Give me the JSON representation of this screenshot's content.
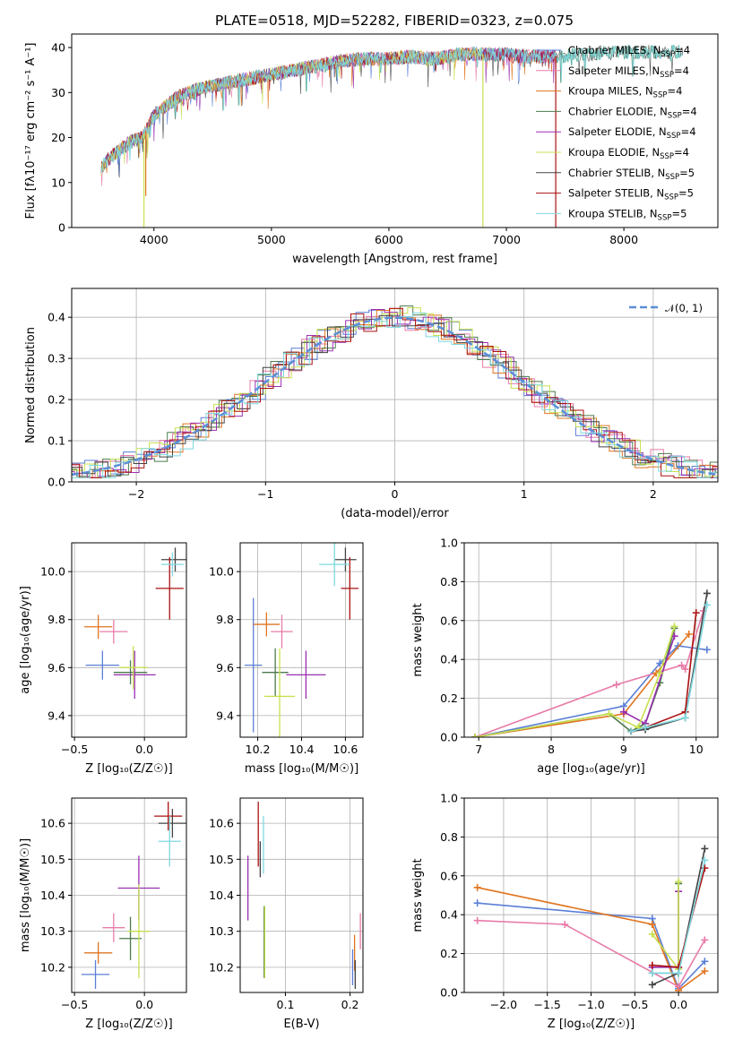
{
  "figure_title": "PLATE=0518, MJD=52282, FIBERID=0323, z=0.075",
  "colors": {
    "chabrier_miles": "#5b7fd6",
    "salpeter_miles": "#e87ba8",
    "kroupa_miles": "#e07520",
    "chabrier_elodie": "#4d7a4d",
    "salpeter_elodie": "#9a2fb0",
    "kroupa_elodie": "#c8e050",
    "chabrier_stelib": "#444444",
    "salpeter_stelib": "#aa1111",
    "kroupa_stelib": "#7fd8e0",
    "gaussian": "#5b8fd6"
  },
  "chart_data": [
    {
      "id": "spectrum",
      "type": "line",
      "title": "PLATE=0518, MJD=52282, FIBERID=0323, z=0.075",
      "xlabel": "wavelength [Angstrom, rest frame]",
      "ylabel": "Flux [fλ10⁻¹⁷ erg cm⁻² s⁻¹ A⁻¹]",
      "xlim": [
        3300,
        8800
      ],
      "ylim": [
        0,
        43
      ],
      "xticks": [
        4000,
        5000,
        6000,
        7000,
        8000
      ],
      "yticks": [
        0,
        10,
        20,
        30,
        40
      ],
      "grid": false,
      "legend_position": "right",
      "legend": [
        {
          "label": "Chabrier MILES, N",
          "sub": "SSP",
          "tail": "=4",
          "color": "#5b7fd6"
        },
        {
          "label": "Salpeter MILES, N",
          "sub": "SSP",
          "tail": "=4",
          "color": "#e87ba8"
        },
        {
          "label": "Kroupa MILES, N",
          "sub": "SSP",
          "tail": "=4",
          "color": "#e07520"
        },
        {
          "label": "Chabrier ELODIE, N",
          "sub": "SSP",
          "tail": "=4",
          "color": "#4d7a4d"
        },
        {
          "label": "Salpeter ELODIE, N",
          "sub": "SSP",
          "tail": "=4",
          "color": "#9a2fb0"
        },
        {
          "label": "Kroupa ELODIE, N",
          "sub": "SSP",
          "tail": "=4",
          "color": "#c8e050"
        },
        {
          "label": "Chabrier STELIB, N",
          "sub": "SSP",
          "tail": "=5",
          "color": "#444444"
        },
        {
          "label": "Salpeter STELIB, N",
          "sub": "SSP",
          "tail": "=5",
          "color": "#aa1111"
        },
        {
          "label": "Kroupa STELIB, N",
          "sub": "SSP",
          "tail": "=5",
          "color": "#7fd8e0"
        }
      ],
      "continuum": {
        "x": [
          3550,
          3600,
          3700,
          3800,
          3900,
          4000,
          4100,
          4200,
          4300,
          4400,
          4600,
          4800,
          5000,
          5200,
          5400,
          5600,
          5800,
          6000,
          6200,
          6400,
          6600,
          6800,
          7000,
          7200,
          7400,
          8000,
          8500
        ],
        "y": [
          13,
          15,
          17,
          19,
          20,
          25,
          27,
          29,
          30,
          31,
          32,
          33,
          34,
          35,
          36,
          37,
          37.5,
          37.5,
          38,
          37.5,
          38.5,
          38.5,
          38.5,
          38,
          38,
          39,
          39
        ]
      },
      "dips": [
        {
          "x": 3915,
          "y": 0,
          "color": "#c8e050"
        },
        {
          "x": 3930,
          "y": 7,
          "color": "#e07520"
        },
        {
          "x": 6800,
          "y": 0,
          "color": "#c8e050"
        },
        {
          "x": 7420,
          "y": 0,
          "color": "#aa1111"
        }
      ]
    },
    {
      "id": "residuals",
      "type": "histogram",
      "xlabel": "(data-model)/error",
      "ylabel": "Normed distribution",
      "xlim": [
        -2.5,
        2.5
      ],
      "ylim": [
        0,
        0.47
      ],
      "xticks": [
        -2,
        -1,
        0,
        1,
        2
      ],
      "yticks": [
        0.0,
        0.1,
        0.2,
        0.3,
        0.4
      ],
      "grid": true,
      "legend_position": "top-right",
      "legend_label": "𝒩(0, 1)",
      "bin_width": 0.1
    },
    {
      "id": "age_vs_Z",
      "type": "errorbar",
      "xlabel": "Z [log₁₀(Z/Z☉)]",
      "ylabel": "age  [log₁₀(age/yr)]",
      "xlim": [
        -0.52,
        0.3
      ],
      "ylim": [
        9.31,
        10.12
      ],
      "xticks": [
        -0.5,
        0.0
      ],
      "xtick_labels": [
        "−0.5",
        "0.0"
      ],
      "yticks": [
        9.4,
        9.6,
        9.8,
        10.0
      ],
      "grid": true,
      "points": [
        {
          "x": -0.3,
          "xerr": 0.12,
          "y": 9.61,
          "yerr": 0.06,
          "color": "#5b7fd6"
        },
        {
          "x": -0.33,
          "xerr": 0.1,
          "y": 9.77,
          "yerr": 0.05,
          "color": "#e07520"
        },
        {
          "x": -0.22,
          "xerr": 0.1,
          "y": 9.75,
          "yerr": 0.05,
          "color": "#e87ba8"
        },
        {
          "x": -0.1,
          "xerr": 0.12,
          "y": 9.58,
          "yerr": 0.05,
          "color": "#4d7a4d"
        },
        {
          "x": -0.07,
          "xerr": 0.15,
          "y": 9.57,
          "yerr": 0.1,
          "color": "#9a2fb0"
        },
        {
          "x": -0.08,
          "xerr": 0.1,
          "y": 9.6,
          "yerr": 0.09,
          "color": "#c8e050"
        },
        {
          "x": 0.22,
          "xerr": 0.1,
          "y": 10.05,
          "yerr": 0.05,
          "color": "#444444"
        },
        {
          "x": 0.18,
          "xerr": 0.1,
          "y": 9.93,
          "yerr": 0.13,
          "color": "#aa1111"
        },
        {
          "x": 0.2,
          "xerr": 0.08,
          "y": 10.03,
          "yerr": 0.05,
          "color": "#7fd8e0"
        }
      ]
    },
    {
      "id": "age_vs_mass",
      "type": "errorbar",
      "xlabel": "mass [log₁₀(M/M☉)]",
      "ylabel": "",
      "xlim": [
        10.12,
        10.68
      ],
      "ylim": [
        9.31,
        10.12
      ],
      "xticks": [
        10.2,
        10.4,
        10.6
      ],
      "yticks": [
        9.4,
        9.6,
        9.8,
        10.0
      ],
      "grid": true,
      "points": [
        {
          "x": 10.18,
          "xerr": 0.04,
          "y": 9.61,
          "yerr": 0.28,
          "color": "#5b7fd6"
        },
        {
          "x": 10.24,
          "xerr": 0.06,
          "y": 9.78,
          "yerr": 0.05,
          "color": "#e07520"
        },
        {
          "x": 10.31,
          "xerr": 0.05,
          "y": 9.75,
          "yerr": 0.07,
          "color": "#e87ba8"
        },
        {
          "x": 10.28,
          "xerr": 0.06,
          "y": 9.58,
          "yerr": 0.1,
          "color": "#4d7a4d"
        },
        {
          "x": 10.42,
          "xerr": 0.09,
          "y": 9.57,
          "yerr": 0.1,
          "color": "#9a2fb0"
        },
        {
          "x": 10.3,
          "xerr": 0.07,
          "y": 9.48,
          "yerr": 0.2,
          "color": "#c8e050"
        },
        {
          "x": 10.6,
          "xerr": 0.05,
          "y": 10.05,
          "yerr": 0.05,
          "color": "#444444"
        },
        {
          "x": 10.62,
          "xerr": 0.04,
          "y": 9.93,
          "yerr": 0.13,
          "color": "#aa1111"
        },
        {
          "x": 10.55,
          "xerr": 0.07,
          "y": 10.03,
          "yerr": 0.09,
          "color": "#7fd8e0"
        }
      ]
    },
    {
      "id": "massweight_vs_age",
      "type": "line",
      "xlabel": "age  [log₁₀(age/yr)]",
      "ylabel": "mass weight",
      "xlim": [
        6.8,
        10.3
      ],
      "ylim": [
        0,
        1.0
      ],
      "xticks": [
        7,
        8,
        9,
        10
      ],
      "yticks": [
        0.0,
        0.2,
        0.4,
        0.6,
        0.8,
        1.0
      ],
      "grid": true,
      "series": [
        {
          "color": "#5b7fd6",
          "points": [
            [
              6.95,
              0.0
            ],
            [
              9.0,
              0.16
            ],
            [
              9.5,
              0.38
            ],
            [
              9.75,
              0.47
            ],
            [
              10.15,
              0.45
            ]
          ]
        },
        {
          "color": "#e87ba8",
          "points": [
            [
              6.95,
              0.0
            ],
            [
              8.9,
              0.27
            ],
            [
              9.8,
              0.37
            ],
            [
              9.85,
              0.35
            ],
            [
              10.1,
              0.65
            ]
          ]
        },
        {
          "color": "#e07520",
          "points": [
            [
              6.95,
              0.0
            ],
            [
              9.0,
              0.12
            ],
            [
              9.45,
              0.33
            ],
            [
              9.9,
              0.53
            ]
          ]
        },
        {
          "color": "#4d7a4d",
          "points": [
            [
              6.95,
              0.0
            ],
            [
              8.8,
              0.12
            ],
            [
              9.1,
              0.03
            ],
            [
              9.3,
              0.07
            ],
            [
              9.5,
              0.28
            ],
            [
              9.7,
              0.56
            ]
          ]
        },
        {
          "color": "#9a2fb0",
          "points": [
            [
              9.0,
              0.13
            ],
            [
              9.3,
              0.07
            ],
            [
              9.7,
              0.52
            ]
          ]
        },
        {
          "color": "#c8e050",
          "points": [
            [
              6.95,
              0.0
            ],
            [
              8.8,
              0.12
            ],
            [
              9.2,
              0.05
            ],
            [
              9.5,
              0.33
            ],
            [
              9.7,
              0.57
            ]
          ]
        },
        {
          "color": "#444444",
          "points": [
            [
              9.1,
              0.03
            ],
            [
              9.3,
              0.04
            ],
            [
              9.85,
              0.1
            ],
            [
              10.15,
              0.74
            ]
          ]
        },
        {
          "color": "#aa1111",
          "points": [
            [
              9.1,
              0.03
            ],
            [
              9.3,
              0.05
            ],
            [
              9.85,
              0.13
            ],
            [
              10.0,
              0.64
            ]
          ]
        },
        {
          "color": "#7fd8e0",
          "points": [
            [
              9.1,
              0.03
            ],
            [
              9.3,
              0.05
            ],
            [
              9.85,
              0.1
            ],
            [
              10.15,
              0.68
            ]
          ]
        }
      ]
    },
    {
      "id": "mass_vs_Z",
      "type": "errorbar",
      "xlabel": "Z [log₁₀(Z/Z☉)]",
      "ylabel": "mass [log₁₀(M/M☉)]",
      "xlim": [
        -0.52,
        0.3
      ],
      "ylim": [
        10.13,
        10.67
      ],
      "xticks": [
        -0.5,
        0.0
      ],
      "xtick_labels": [
        "−0.5",
        "0.0"
      ],
      "yticks": [
        10.2,
        10.3,
        10.4,
        10.5,
        10.6
      ],
      "grid": true,
      "points": [
        {
          "x": -0.35,
          "xerr": 0.1,
          "y": 10.18,
          "yerr": 0.04,
          "color": "#5b7fd6"
        },
        {
          "x": -0.33,
          "xerr": 0.1,
          "y": 10.24,
          "yerr": 0.03,
          "color": "#e07520"
        },
        {
          "x": -0.22,
          "xerr": 0.08,
          "y": 10.31,
          "yerr": 0.04,
          "color": "#e87ba8"
        },
        {
          "x": -0.1,
          "xerr": 0.08,
          "y": 10.28,
          "yerr": 0.06,
          "color": "#4d7a4d"
        },
        {
          "x": -0.04,
          "xerr": 0.15,
          "y": 10.42,
          "yerr": 0.09,
          "color": "#9a2fb0"
        },
        {
          "x": -0.04,
          "xerr": 0.08,
          "y": 10.3,
          "yerr": 0.13,
          "color": "#c8e050"
        },
        {
          "x": 0.2,
          "xerr": 0.1,
          "y": 10.6,
          "yerr": 0.04,
          "color": "#444444"
        },
        {
          "x": 0.17,
          "xerr": 0.1,
          "y": 10.62,
          "yerr": 0.04,
          "color": "#aa1111"
        },
        {
          "x": 0.18,
          "xerr": 0.08,
          "y": 10.55,
          "yerr": 0.07,
          "color": "#7fd8e0"
        }
      ]
    },
    {
      "id": "mass_vs_ebv",
      "type": "errorbar",
      "xlabel": "E(B-V)",
      "ylabel": "",
      "xlim": [
        0.03,
        0.22
      ],
      "ylim": [
        10.13,
        10.67
      ],
      "xticks": [
        0.1,
        0.2
      ],
      "yticks": [
        10.2,
        10.3,
        10.4,
        10.5,
        10.6
      ],
      "grid": true,
      "points": [
        {
          "x": 0.042,
          "xerr": 0.0,
          "y": 10.42,
          "yerr": 0.09,
          "color": "#9a2fb0"
        },
        {
          "x": 0.058,
          "xerr": 0.0,
          "y": 10.57,
          "yerr": 0.09,
          "color": "#aa1111"
        },
        {
          "x": 0.061,
          "xerr": 0.0,
          "y": 10.5,
          "yerr": 0.05,
          "color": "#444444"
        },
        {
          "x": 0.066,
          "xerr": 0.0,
          "y": 10.54,
          "yerr": 0.08,
          "color": "#7fd8e0"
        },
        {
          "x": 0.067,
          "xerr": 0.0,
          "y": 10.27,
          "yerr": 0.1,
          "color": "#4d7a4d"
        },
        {
          "x": 0.068,
          "xerr": 0.0,
          "y": 10.27,
          "yerr": 0.1,
          "color": "#c8e050"
        },
        {
          "x": 0.204,
          "xerr": 0.0,
          "y": 10.2,
          "yerr": 0.05,
          "color": "#5b7fd6"
        },
        {
          "x": 0.207,
          "xerr": 0.0,
          "y": 10.24,
          "yerr": 0.05,
          "color": "#e07520"
        },
        {
          "x": 0.208,
          "xerr": 0.0,
          "y": 10.18,
          "yerr": 0.04,
          "color": "#444444"
        },
        {
          "x": 0.216,
          "xerr": 0.0,
          "y": 10.3,
          "yerr": 0.05,
          "color": "#e87ba8"
        }
      ]
    },
    {
      "id": "massweight_vs_Z",
      "type": "line",
      "xlabel": "Z [log₁₀(Z/Z☉)]",
      "ylabel": "mass weight",
      "xlim": [
        -2.45,
        0.45
      ],
      "ylim": [
        0,
        1.0
      ],
      "xticks": [
        -2.0,
        -1.5,
        -1.0,
        -0.5,
        0.0
      ],
      "xtick_labels": [
        "−2.0",
        "−1.5",
        "−1.0",
        "−0.5",
        "0.0"
      ],
      "yticks": [
        0.0,
        0.2,
        0.4,
        0.6,
        0.8,
        1.0
      ],
      "grid": true,
      "series": [
        {
          "color": "#5b7fd6",
          "points": [
            [
              -2.3,
              0.46
            ],
            [
              -0.3,
              0.38
            ],
            [
              0.0,
              0.02
            ],
            [
              0.3,
              0.16
            ]
          ]
        },
        {
          "color": "#e07520",
          "points": [
            [
              -2.3,
              0.54
            ],
            [
              -0.3,
              0.35
            ],
            [
              0.0,
              0.01
            ],
            [
              0.3,
              0.11
            ]
          ]
        },
        {
          "color": "#e87ba8",
          "points": [
            [
              -2.3,
              0.37
            ],
            [
              -1.3,
              0.35
            ],
            [
              0.0,
              0.03
            ],
            [
              0.3,
              0.27
            ]
          ]
        },
        {
          "color": "#4d7a4d",
          "points": [
            [
              -0.3,
              0.1
            ],
            [
              0.0,
              0.1
            ],
            [
              0.0,
              0.56
            ]
          ]
        },
        {
          "color": "#9a2fb0",
          "points": [
            [
              -0.3,
              0.13
            ],
            [
              0.0,
              0.13
            ],
            [
              0.0,
              0.52
            ]
          ]
        },
        {
          "color": "#c8e050",
          "points": [
            [
              -0.3,
              0.3
            ],
            [
              0.0,
              0.12
            ],
            [
              0.0,
              0.57
            ]
          ]
        },
        {
          "color": "#444444",
          "points": [
            [
              -0.3,
              0.04
            ],
            [
              0.0,
              0.1
            ],
            [
              0.3,
              0.74
            ]
          ]
        },
        {
          "color": "#aa1111",
          "points": [
            [
              -0.3,
              0.14
            ],
            [
              0.0,
              0.13
            ],
            [
              0.3,
              0.64
            ]
          ]
        },
        {
          "color": "#7fd8e0",
          "points": [
            [
              -0.3,
              0.1
            ],
            [
              0.0,
              0.1
            ],
            [
              0.3,
              0.68
            ]
          ]
        }
      ]
    }
  ]
}
